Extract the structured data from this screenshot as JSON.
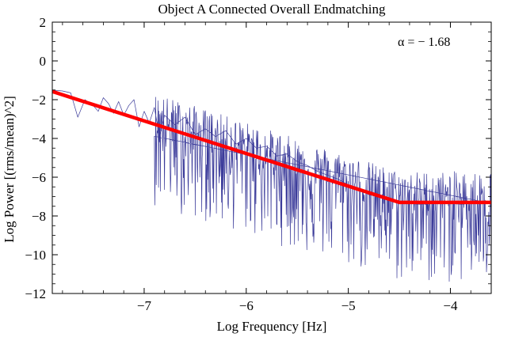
{
  "chart_data": {
    "type": "line",
    "title": "Object A Connected Overall Endmatching",
    "xlabel": "Log Frequency [Hz]",
    "ylabel": "Log Power [(rms/mean)^2]",
    "xlim": [
      -7.9,
      -3.6
    ],
    "ylim": [
      -12,
      2
    ],
    "xticks": [
      -7,
      -6,
      -5,
      -4
    ],
    "xtick_labels": [
      "−7",
      "−6",
      "−5",
      "−4"
    ],
    "yticks": [
      2,
      0,
      -2,
      -4,
      -6,
      -8,
      -10,
      -12
    ],
    "ytick_labels": [
      "2",
      "0",
      "−2",
      "−4",
      "−6",
      "−8",
      "−10",
      "−12"
    ],
    "grid": false,
    "annotation": "α = − 1.68",
    "series": [
      {
        "color": "#3b3b9a",
        "points": [
          [
            -7.9,
            -1.5
          ],
          [
            -7.8,
            -1.55
          ],
          [
            -7.72,
            -1.65
          ],
          [
            -7.65,
            -2.9
          ],
          [
            -7.58,
            -2.0
          ],
          [
            -7.5,
            -2.3
          ],
          [
            -7.45,
            -2.6
          ],
          [
            -7.4,
            -1.9
          ],
          [
            -7.35,
            -2.2
          ],
          [
            -7.3,
            -2.7
          ],
          [
            -7.25,
            -2.1
          ],
          [
            -7.2,
            -2.8
          ],
          [
            -7.15,
            -2.3
          ],
          [
            -7.1,
            -2.0
          ],
          [
            -7.05,
            -3.4
          ],
          [
            -7.0,
            -2.6
          ],
          [
            -6.95,
            -3.2
          ],
          [
            -6.9,
            -2.4
          ],
          [
            -6.85,
            -3.9
          ],
          [
            -6.8,
            -2.8
          ],
          [
            -6.7,
            -3.3
          ],
          [
            -6.6,
            -2.9
          ],
          [
            -6.5,
            -3.8
          ],
          [
            -6.4,
            -3.5
          ],
          [
            -6.3,
            -3.9
          ],
          [
            -6.2,
            -3.6
          ],
          [
            -6.1,
            -4.3
          ],
          [
            -6.0,
            -4.0
          ],
          [
            -5.9,
            -4.5
          ],
          [
            -5.8,
            -4.4
          ],
          [
            -5.7,
            -4.9
          ],
          [
            -5.6,
            -4.8
          ],
          [
            -5.5,
            -5.2
          ],
          [
            -5.4,
            -5.4
          ],
          [
            -5.3,
            -5.7
          ],
          [
            -5.2,
            -5.9
          ],
          [
            -5.1,
            -6.1
          ],
          [
            -5.0,
            -6.4
          ],
          [
            -4.9,
            -6.6
          ],
          [
            -4.8,
            -6.9
          ],
          [
            -4.7,
            -7.0
          ],
          [
            -4.6,
            -7.2
          ],
          [
            -4.5,
            -7.3
          ],
          [
            -4.3,
            -7.4
          ],
          [
            -4.1,
            -7.3
          ],
          [
            -3.9,
            -7.4
          ],
          [
            -3.7,
            -7.3
          ],
          [
            -3.6,
            -7.35
          ]
        ],
        "noise": {
          "start": -6.9,
          "slope": -1.68,
          "intercept": -14.85,
          "floor": -7.3,
          "break": -4.5,
          "spread_up": 1.6,
          "spread_down": 4.2
        }
      },
      {
        "name": "fit",
        "color": "#ff0000",
        "alpha": -1.68,
        "points": [
          [
            -7.9,
            -1.58
          ],
          [
            -4.5,
            -7.3
          ],
          [
            -3.6,
            -7.3
          ]
        ]
      }
    ]
  }
}
